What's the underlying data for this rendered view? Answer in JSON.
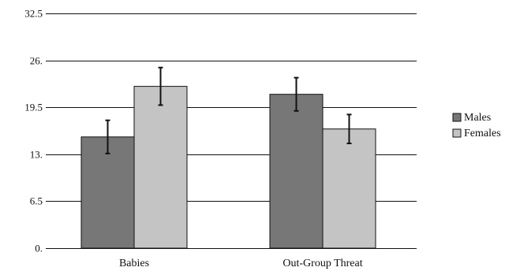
{
  "chart_data": {
    "type": "bar",
    "title": "",
    "xlabel": "",
    "ylabel": "",
    "categories": [
      "Babies",
      "Out-Group Threat"
    ],
    "series": [
      {
        "name": "Males",
        "values": [
          15.4,
          21.3
        ],
        "error": [
          2.3,
          2.3
        ],
        "color": "#777777"
      },
      {
        "name": "Females",
        "values": [
          22.4,
          16.5
        ],
        "error": [
          2.6,
          2.0
        ],
        "color": "#c4c4c4"
      }
    ],
    "ylim": [
      0,
      32.5
    ],
    "yticks": [
      0,
      6.5,
      13,
      19.5,
      26,
      32.5
    ],
    "ytick_labels": [
      "0.",
      "6.5",
      "13.",
      "19.5",
      "26.",
      "32.5"
    ],
    "grid": true,
    "legend_position": "right"
  }
}
